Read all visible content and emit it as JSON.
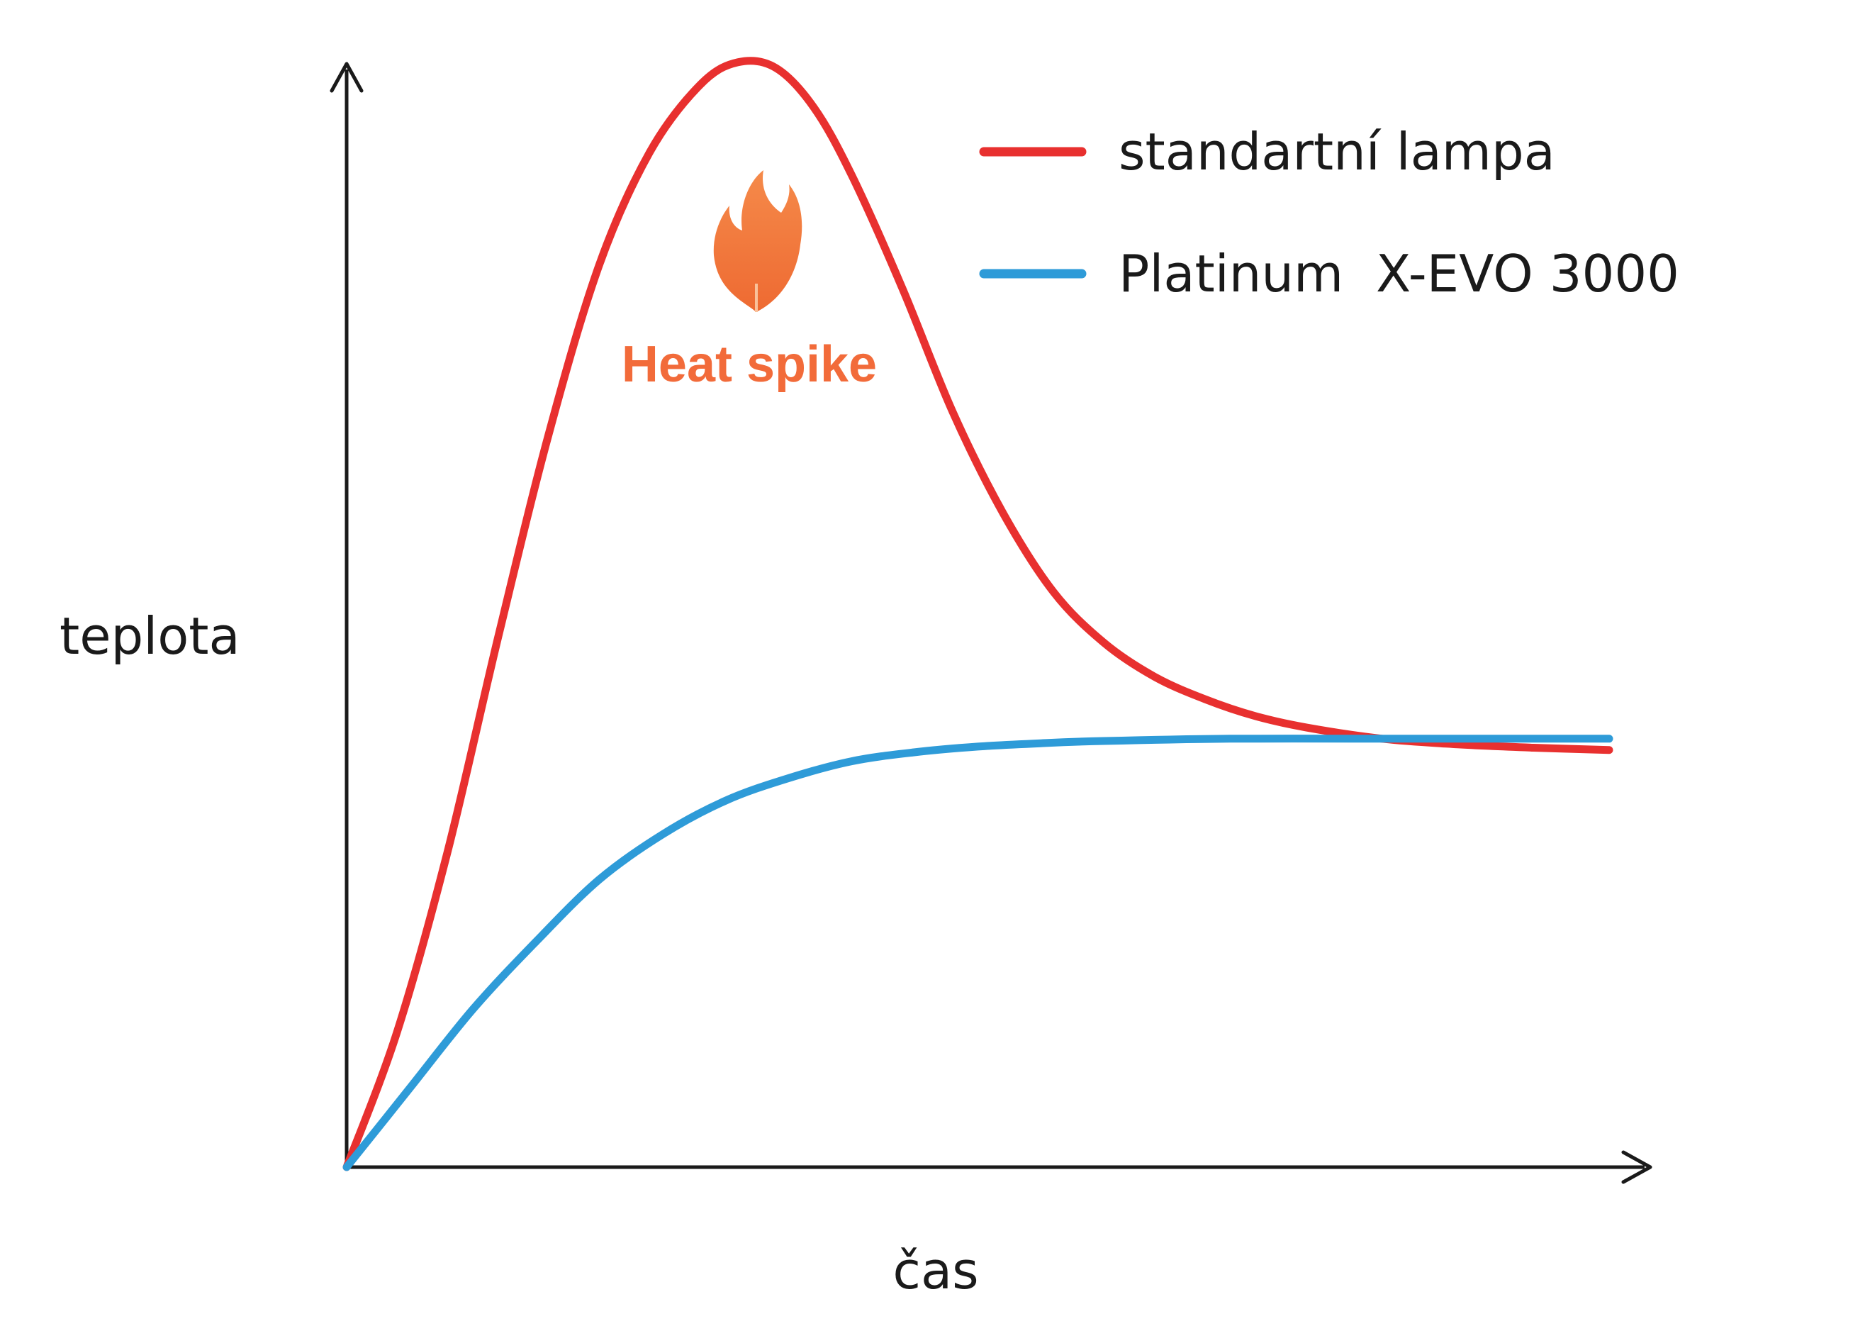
{
  "chart_data": {
    "type": "line",
    "title": "",
    "xlabel": "čas",
    "ylabel": "teplota",
    "xlim": [
      0,
      100
    ],
    "ylim": [
      0,
      100
    ],
    "grid": false,
    "legend_position": "top-right",
    "annotation": {
      "label": "Heat spike",
      "icon": "flame-icon",
      "color": "#F26B3A"
    },
    "series": [
      {
        "name": "standartní lampa",
        "color": "#E8302F",
        "x": [
          0,
          4,
          8,
          12,
          16,
          20,
          24,
          28,
          31,
          34,
          37,
          40,
          44,
          48,
          52,
          56,
          60,
          64,
          68,
          72,
          76,
          82,
          88,
          94,
          100
        ],
        "y": [
          0,
          12,
          28,
          47,
          65,
          80,
          90,
          96,
          98,
          97.5,
          94,
          88,
          78,
          67,
          58,
          51,
          46.5,
          43.5,
          41.5,
          40,
          39,
          38,
          37.5,
          37.2,
          37
        ]
      },
      {
        "name": "Platinum  X-EVO 3000",
        "color": "#2E9BD8",
        "x": [
          0,
          5,
          10,
          15,
          20,
          25,
          30,
          35,
          40,
          45,
          50,
          55,
          60,
          70,
          80,
          90,
          100
        ],
        "y": [
          0,
          7,
          14,
          20,
          25.5,
          29.5,
          32.5,
          34.5,
          36,
          36.8,
          37.3,
          37.6,
          37.8,
          38,
          38,
          38,
          38
        ]
      }
    ]
  }
}
